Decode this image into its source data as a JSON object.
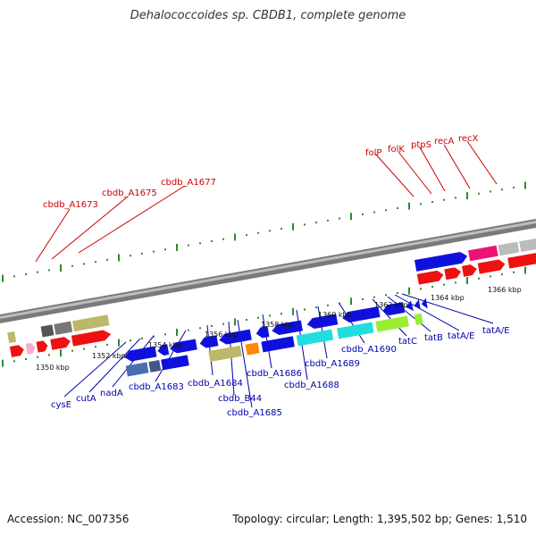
{
  "title": "Dehalococcoides sp. CBDB1, complete genome",
  "footer": {
    "accession": "Accession: NC_007356",
    "summary": "Topology: circular; Length: 1,395,502 bp; Genes: 1,510"
  },
  "colors": {
    "top_label": "#cc0000",
    "bottom_label": "#0000aa",
    "tick": "#2e8b2e"
  },
  "tick_labels": [
    "1350 kbp",
    "1352 kbp",
    "1354 kbp",
    "1356 kbp",
    "1358 kbp",
    "1360 kbp",
    "1362 kbp",
    "1364 kbp",
    "1366 kbp"
  ],
  "top_labels": [
    "cbdb_A1673",
    "cbdb_A1675",
    "cbdb_A1677",
    "folP",
    "folK",
    "ptpS",
    "recA",
    "recX"
  ],
  "bottom_labels": [
    "cysE",
    "cutA",
    "nadA",
    "cbdb_A1683",
    "cbdb_A1684",
    "cbdb_B44",
    "cbdb_A1685",
    "cbdb_A1686",
    "cbdb_A1688",
    "cbdb_A1689",
    "cbdb_A1690",
    "tatC",
    "tatB",
    "tatA/E",
    "tatA/E"
  ]
}
